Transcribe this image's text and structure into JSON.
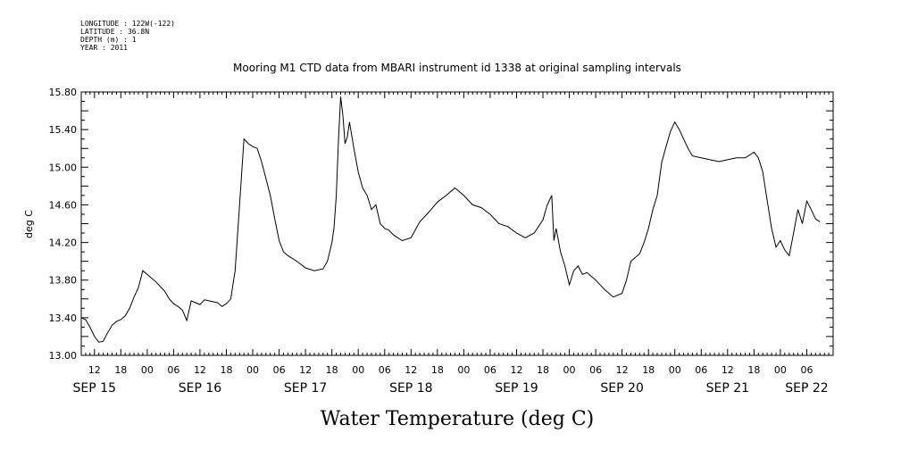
{
  "chart_data": {
    "type": "line",
    "metadata": [
      "LONGITUDE : 122W(-122)",
      "LATITUDE : 36.8N",
      "DEPTH (m) : 1",
      "YEAR : 2011"
    ],
    "title": "Mooring M1 CTD data from MBARI instrument id 1338 at original sampling intervals",
    "ylabel": "deg C",
    "xlabel": "Water Temperature (deg C)",
    "x_start": "2011-09-15 09:00",
    "x_end": "2011-09-22 12:00",
    "ylim": [
      13.0,
      15.8
    ],
    "y_ticks": [
      "13.00",
      "13.40",
      "13.80",
      "14.20",
      "14.60",
      "15.00",
      "15.40",
      "15.80"
    ],
    "hour_tick_labels": [
      {
        "label": "12",
        "x": "2011-09-15 12:00"
      },
      {
        "label": "18",
        "x": "2011-09-15 18:00"
      },
      {
        "label": "00",
        "x": "2011-09-16 00:00"
      },
      {
        "label": "06",
        "x": "2011-09-16 06:00"
      },
      {
        "label": "12",
        "x": "2011-09-16 12:00"
      },
      {
        "label": "18",
        "x": "2011-09-16 18:00"
      },
      {
        "label": "00",
        "x": "2011-09-17 00:00"
      },
      {
        "label": "06",
        "x": "2011-09-17 06:00"
      },
      {
        "label": "12",
        "x": "2011-09-17 12:00"
      },
      {
        "label": "18",
        "x": "2011-09-17 18:00"
      },
      {
        "label": "00",
        "x": "2011-09-18 00:00"
      },
      {
        "label": "06",
        "x": "2011-09-18 06:00"
      },
      {
        "label": "12",
        "x": "2011-09-18 12:00"
      },
      {
        "label": "18",
        "x": "2011-09-18 18:00"
      },
      {
        "label": "00",
        "x": "2011-09-19 00:00"
      },
      {
        "label": "06",
        "x": "2011-09-19 06:00"
      },
      {
        "label": "12",
        "x": "2011-09-19 12:00"
      },
      {
        "label": "18",
        "x": "2011-09-19 18:00"
      },
      {
        "label": "00",
        "x": "2011-09-20 00:00"
      },
      {
        "label": "06",
        "x": "2011-09-20 06:00"
      },
      {
        "label": "12",
        "x": "2011-09-20 12:00"
      },
      {
        "label": "18",
        "x": "2011-09-20 18:00"
      },
      {
        "label": "00",
        "x": "2011-09-21 00:00"
      },
      {
        "label": "06",
        "x": "2011-09-21 06:00"
      },
      {
        "label": "12",
        "x": "2011-09-21 12:00"
      },
      {
        "label": "18",
        "x": "2011-09-21 18:00"
      },
      {
        "label": "00",
        "x": "2011-09-22 00:00"
      },
      {
        "label": "06",
        "x": "2011-09-22 06:00"
      }
    ],
    "day_labels": [
      {
        "label": "SEP 15",
        "x": "2011-09-15 12:00"
      },
      {
        "label": "SEP 16",
        "x": "2011-09-16 12:00"
      },
      {
        "label": "SEP 17",
        "x": "2011-09-17 12:00"
      },
      {
        "label": "SEP 18",
        "x": "2011-09-18 12:00"
      },
      {
        "label": "SEP 19",
        "x": "2011-09-19 12:00"
      },
      {
        "label": "SEP 20",
        "x": "2011-09-20 12:00"
      },
      {
        "label": "SEP 21",
        "x": "2011-09-21 12:00"
      },
      {
        "label": "SEP 22",
        "x": "2011-09-22 06:00"
      }
    ],
    "series": [
      {
        "x": [
          "2011-09-15 09:00",
          "2011-09-15 10:00",
          "2011-09-15 11:00",
          "2011-09-15 12:00",
          "2011-09-15 13:00",
          "2011-09-15 14:00",
          "2011-09-15 15:00",
          "2011-09-15 16:00",
          "2011-09-15 17:00",
          "2011-09-15 18:00",
          "2011-09-15 19:00",
          "2011-09-15 20:00",
          "2011-09-15 21:00",
          "2011-09-15 22:00",
          "2011-09-15 23:00",
          "2011-09-16 00:00",
          "2011-09-16 02:00",
          "2011-09-16 04:00",
          "2011-09-16 05:00",
          "2011-09-16 06:00",
          "2011-09-16 07:00",
          "2011-09-16 08:00",
          "2011-09-16 09:00",
          "2011-09-16 10:00",
          "2011-09-16 11:00",
          "2011-09-16 12:00",
          "2011-09-16 13:00",
          "2011-09-16 14:00",
          "2011-09-16 16:00",
          "2011-09-16 17:00",
          "2011-09-16 18:00",
          "2011-09-16 19:00",
          "2011-09-16 20:00",
          "2011-09-16 21:00",
          "2011-09-16 22:00",
          "2011-09-16 23:00",
          "2011-09-17 00:00",
          "2011-09-17 01:00",
          "2011-09-17 02:00",
          "2011-09-17 03:00",
          "2011-09-17 04:00",
          "2011-09-17 05:00",
          "2011-09-17 06:00",
          "2011-09-17 07:00",
          "2011-09-17 08:00",
          "2011-09-17 10:00",
          "2011-09-17 12:00",
          "2011-09-17 14:00",
          "2011-09-17 16:00",
          "2011-09-17 17:00",
          "2011-09-17 18:00",
          "2011-09-17 18:30",
          "2011-09-17 19:00",
          "2011-09-17 19:30",
          "2011-09-17 20:00",
          "2011-09-17 20:30",
          "2011-09-17 21:00",
          "2011-09-17 21:30",
          "2011-09-17 22:00",
          "2011-09-17 23:00",
          "2011-09-18 00:00",
          "2011-09-18 01:00",
          "2011-09-18 02:00",
          "2011-09-18 03:00",
          "2011-09-18 04:00",
          "2011-09-18 05:00",
          "2011-09-18 06:00",
          "2011-09-18 07:00",
          "2011-09-18 08:00",
          "2011-09-18 09:00",
          "2011-09-18 10:00",
          "2011-09-18 12:00",
          "2011-09-18 14:00",
          "2011-09-18 16:00",
          "2011-09-18 18:00",
          "2011-09-18 20:00",
          "2011-09-18 22:00",
          "2011-09-19 00:00",
          "2011-09-19 02:00",
          "2011-09-19 04:00",
          "2011-09-19 06:00",
          "2011-09-19 08:00",
          "2011-09-19 10:00",
          "2011-09-19 12:00",
          "2011-09-19 14:00",
          "2011-09-19 16:00",
          "2011-09-19 18:00",
          "2011-09-19 19:00",
          "2011-09-19 20:00",
          "2011-09-19 20:30",
          "2011-09-19 21:00",
          "2011-09-19 22:00",
          "2011-09-19 23:00",
          "2011-09-20 00:00",
          "2011-09-20 01:00",
          "2011-09-20 02:00",
          "2011-09-20 03:00",
          "2011-09-20 04:00",
          "2011-09-20 06:00",
          "2011-09-20 08:00",
          "2011-09-20 10:00",
          "2011-09-20 12:00",
          "2011-09-20 13:00",
          "2011-09-20 14:00",
          "2011-09-20 16:00",
          "2011-09-20 17:00",
          "2011-09-20 18:00",
          "2011-09-20 19:00",
          "2011-09-20 20:00",
          "2011-09-20 21:00",
          "2011-09-20 22:00",
          "2011-09-20 23:00",
          "2011-09-21 00:00",
          "2011-09-21 01:00",
          "2011-09-21 02:00",
          "2011-09-21 03:00",
          "2011-09-21 04:00",
          "2011-09-21 06:00",
          "2011-09-21 08:00",
          "2011-09-21 10:00",
          "2011-09-21 12:00",
          "2011-09-21 14:00",
          "2011-09-21 16:00",
          "2011-09-21 18:00",
          "2011-09-21 19:00",
          "2011-09-21 20:00",
          "2011-09-21 21:00",
          "2011-09-21 22:00",
          "2011-09-21 23:00",
          "2011-09-22 00:00",
          "2011-09-22 01:00",
          "2011-09-22 02:00",
          "2011-09-22 03:00",
          "2011-09-22 04:00",
          "2011-09-22 05:00",
          "2011-09-22 06:00",
          "2011-09-22 07:00",
          "2011-09-22 08:00",
          "2011-09-22 09:00"
        ],
        "values": [
          13.4,
          13.38,
          13.3,
          13.2,
          13.14,
          13.15,
          13.24,
          13.32,
          13.36,
          13.38,
          13.42,
          13.5,
          13.62,
          13.72,
          13.9,
          13.86,
          13.78,
          13.68,
          13.6,
          13.55,
          13.52,
          13.48,
          13.37,
          13.58,
          13.56,
          13.54,
          13.59,
          13.58,
          13.56,
          13.52,
          13.55,
          13.6,
          13.9,
          14.6,
          15.3,
          15.25,
          15.22,
          15.2,
          15.06,
          14.88,
          14.7,
          14.45,
          14.22,
          14.1,
          14.06,
          14.0,
          13.93,
          13.9,
          13.92,
          14.0,
          14.2,
          14.36,
          14.7,
          15.3,
          15.75,
          15.55,
          15.25,
          15.32,
          15.48,
          15.2,
          14.95,
          14.78,
          14.7,
          14.55,
          14.6,
          14.4,
          14.35,
          14.33,
          14.28,
          14.25,
          14.22,
          14.25,
          14.42,
          14.52,
          14.63,
          14.7,
          14.78,
          14.7,
          14.6,
          14.57,
          14.5,
          14.4,
          14.37,
          14.3,
          14.25,
          14.3,
          14.44,
          14.6,
          14.7,
          14.22,
          14.35,
          14.1,
          13.95,
          13.75,
          13.9,
          13.95,
          13.86,
          13.88,
          13.8,
          13.7,
          13.62,
          13.66,
          13.8,
          14.0,
          14.08,
          14.2,
          14.35,
          14.55,
          14.7,
          15.05,
          15.22,
          15.38,
          15.48,
          15.4,
          15.3,
          15.2,
          15.12,
          15.1,
          15.08,
          15.06,
          15.08,
          15.1,
          15.1,
          15.16,
          15.1,
          14.95,
          14.65,
          14.35,
          14.15,
          14.22,
          14.12,
          14.06,
          14.3,
          14.55,
          14.4,
          14.64,
          14.55,
          14.45,
          14.42
        ]
      }
    ]
  }
}
